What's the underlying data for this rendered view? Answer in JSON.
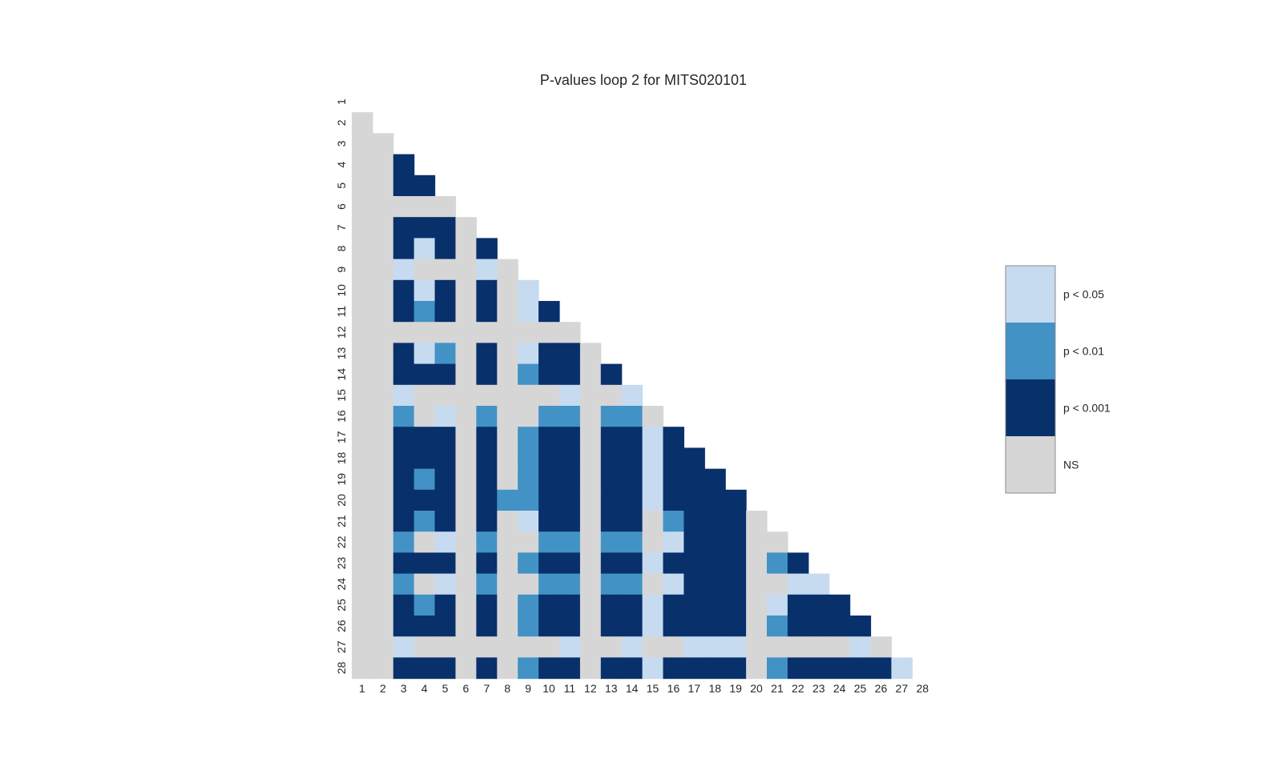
{
  "chart_data": {
    "type": "heatmap",
    "title": "P-values loop 2 for MITS020101",
    "xlabel": "",
    "ylabel": "",
    "labels": [
      "1",
      "2",
      "3",
      "4",
      "5",
      "6",
      "7",
      "8",
      "9",
      "10",
      "11",
      "12",
      "13",
      "14",
      "15",
      "16",
      "17",
      "18",
      "19",
      "20",
      "21",
      "22",
      "23",
      "24",
      "25",
      "26",
      "27",
      "28"
    ],
    "matrix_shape": "lower-triangle",
    "value_encoding": {
      "0": "NS",
      "1": "p < 0.05",
      "2": "p < 0.01",
      "3": "p < 0.001"
    },
    "legend": {
      "position": "right",
      "entries": [
        {
          "level": 1,
          "label": "p < 0.05",
          "color": "#c6dbef"
        },
        {
          "level": 2,
          "label": "p < 0.01",
          "color": "#4292c6"
        },
        {
          "level": 3,
          "label": "p < 0.001",
          "color": "#08306b"
        },
        {
          "level": 0,
          "label": "NS",
          "color": "#d6d6d6"
        }
      ]
    },
    "rows": [
      [],
      [
        0
      ],
      [
        0,
        0
      ],
      [
        0,
        0,
        3
      ],
      [
        0,
        0,
        3,
        3
      ],
      [
        0,
        0,
        0,
        0,
        0
      ],
      [
        0,
        0,
        3,
        3,
        3,
        0
      ],
      [
        0,
        0,
        3,
        1,
        3,
        0,
        3
      ],
      [
        0,
        0,
        1,
        0,
        0,
        0,
        1,
        0
      ],
      [
        0,
        0,
        3,
        1,
        3,
        0,
        3,
        0,
        1
      ],
      [
        0,
        0,
        3,
        2,
        3,
        0,
        3,
        0,
        1,
        3
      ],
      [
        0,
        0,
        0,
        0,
        0,
        0,
        0,
        0,
        0,
        0,
        0
      ],
      [
        0,
        0,
        3,
        1,
        2,
        0,
        3,
        0,
        1,
        3,
        3,
        0
      ],
      [
        0,
        0,
        3,
        3,
        3,
        0,
        3,
        0,
        2,
        3,
        3,
        0,
        3
      ],
      [
        0,
        0,
        1,
        0,
        0,
        0,
        0,
        0,
        0,
        0,
        1,
        0,
        0,
        1
      ],
      [
        0,
        0,
        2,
        0,
        1,
        0,
        2,
        0,
        0,
        2,
        2,
        0,
        2,
        2,
        0
      ],
      [
        0,
        0,
        3,
        3,
        3,
        0,
        3,
        0,
        2,
        3,
        3,
        0,
        3,
        3,
        1,
        3
      ],
      [
        0,
        0,
        3,
        3,
        3,
        0,
        3,
        0,
        2,
        3,
        3,
        0,
        3,
        3,
        1,
        3,
        3
      ],
      [
        0,
        0,
        3,
        2,
        3,
        0,
        3,
        0,
        2,
        3,
        3,
        0,
        3,
        3,
        1,
        3,
        3,
        3
      ],
      [
        0,
        0,
        3,
        3,
        3,
        0,
        3,
        2,
        2,
        3,
        3,
        0,
        3,
        3,
        1,
        3,
        3,
        3,
        3
      ],
      [
        0,
        0,
        3,
        2,
        3,
        0,
        3,
        0,
        1,
        3,
        3,
        0,
        3,
        3,
        0,
        2,
        3,
        3,
        3,
        0
      ],
      [
        0,
        0,
        2,
        0,
        1,
        0,
        2,
        0,
        0,
        2,
        2,
        0,
        2,
        2,
        0,
        1,
        3,
        3,
        3,
        0,
        0
      ],
      [
        0,
        0,
        3,
        3,
        3,
        0,
        3,
        0,
        2,
        3,
        3,
        0,
        3,
        3,
        1,
        3,
        3,
        3,
        3,
        0,
        2,
        3
      ],
      [
        0,
        0,
        2,
        0,
        1,
        0,
        2,
        0,
        0,
        2,
        2,
        0,
        2,
        2,
        0,
        1,
        3,
        3,
        3,
        0,
        0,
        1,
        1
      ],
      [
        0,
        0,
        3,
        2,
        3,
        0,
        3,
        0,
        2,
        3,
        3,
        0,
        3,
        3,
        1,
        3,
        3,
        3,
        3,
        0,
        1,
        3,
        3,
        3
      ],
      [
        0,
        0,
        3,
        3,
        3,
        0,
        3,
        0,
        2,
        3,
        3,
        0,
        3,
        3,
        1,
        3,
        3,
        3,
        3,
        0,
        2,
        3,
        3,
        3,
        3
      ],
      [
        0,
        0,
        1,
        0,
        0,
        0,
        0,
        0,
        0,
        0,
        1,
        0,
        0,
        1,
        0,
        0,
        1,
        1,
        1,
        0,
        0,
        0,
        0,
        0,
        1,
        0
      ],
      [
        0,
        0,
        3,
        3,
        3,
        0,
        3,
        0,
        2,
        3,
        3,
        0,
        3,
        3,
        1,
        3,
        3,
        3,
        3,
        0,
        2,
        3,
        3,
        3,
        3,
        3,
        1
      ]
    ]
  }
}
